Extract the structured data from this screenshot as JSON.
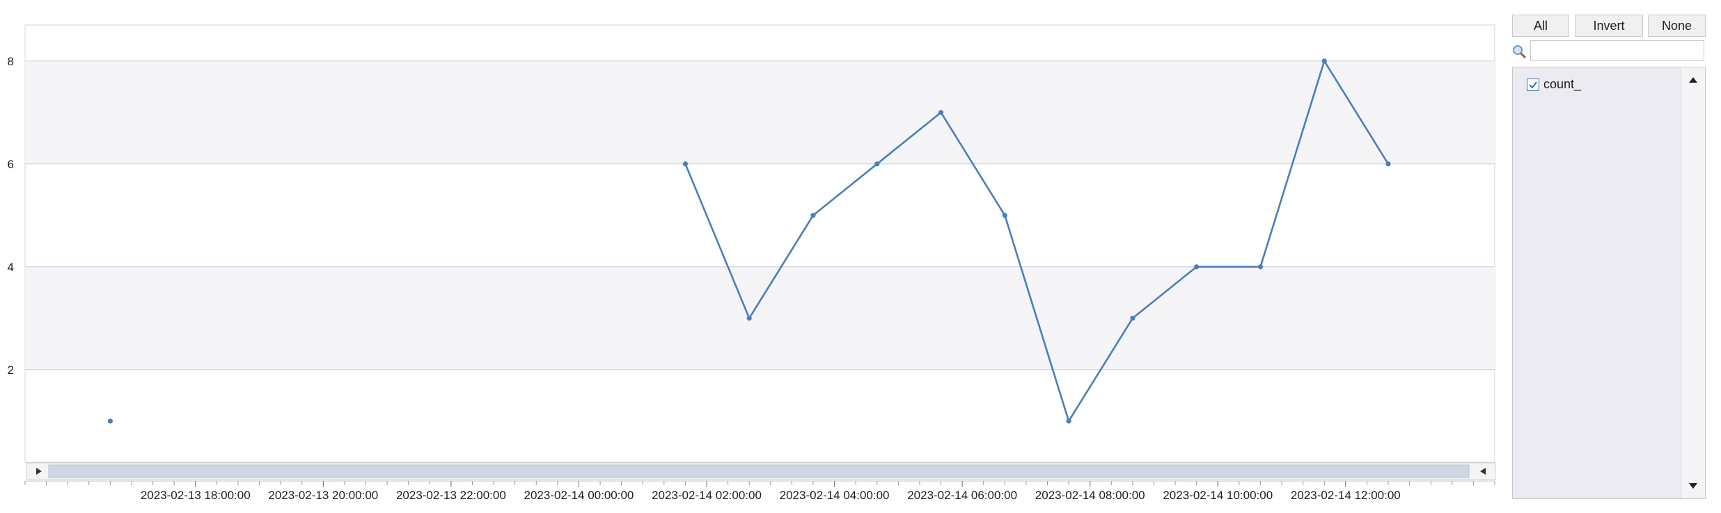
{
  "chart_data": {
    "type": "line",
    "x": [
      "2023-02-13 16:40:00",
      "2023-02-14 01:40:00",
      "2023-02-14 02:40:00",
      "2023-02-14 03:40:00",
      "2023-02-14 04:40:00",
      "2023-02-14 05:40:00",
      "2023-02-14 06:40:00",
      "2023-02-14 07:40:00",
      "2023-02-14 08:40:00",
      "2023-02-14 09:40:00",
      "2023-02-14 10:40:00",
      "2023-02-14 11:40:00",
      "2023-02-14 12:40:00"
    ],
    "series": [
      {
        "name": "count_",
        "values": [
          1,
          6,
          3,
          5,
          6,
          7,
          5,
          1,
          3,
          4,
          4,
          8,
          6
        ],
        "color": "#4a7ebb",
        "segments": [
          [
            0,
            0
          ],
          [
            1,
            12
          ]
        ]
      }
    ],
    "x_tick_labels": [
      "2023-02-13 18:00:00",
      "2023-02-13 20:00:00",
      "2023-02-13 22:00:00",
      "2023-02-14 00:00:00",
      "2023-02-14 02:00:00",
      "2023-02-14 04:00:00",
      "2023-02-14 06:00:00",
      "2023-02-14 08:00:00",
      "2023-02-14 10:00:00",
      "2023-02-14 12:00:00"
    ],
    "y_tick_labels": [
      "2",
      "4",
      "6",
      "8"
    ],
    "ylim": [
      0.2,
      8.7
    ],
    "xlim": [
      "2023-02-13 15:20:00",
      "2023-02-14 14:20:00"
    ],
    "grid": true,
    "band_color": "#f5f5f7",
    "grid_color": "#c8d1df"
  },
  "legend": {
    "buttons": {
      "all": "All",
      "invert": "Invert",
      "none": "None"
    },
    "search_placeholder": "",
    "items": [
      {
        "label": "count_",
        "checked": true
      }
    ]
  },
  "colors": {
    "accent": "#4a7ebb",
    "panel": "#ebebf1",
    "checkbox": "#3d6ea8"
  }
}
